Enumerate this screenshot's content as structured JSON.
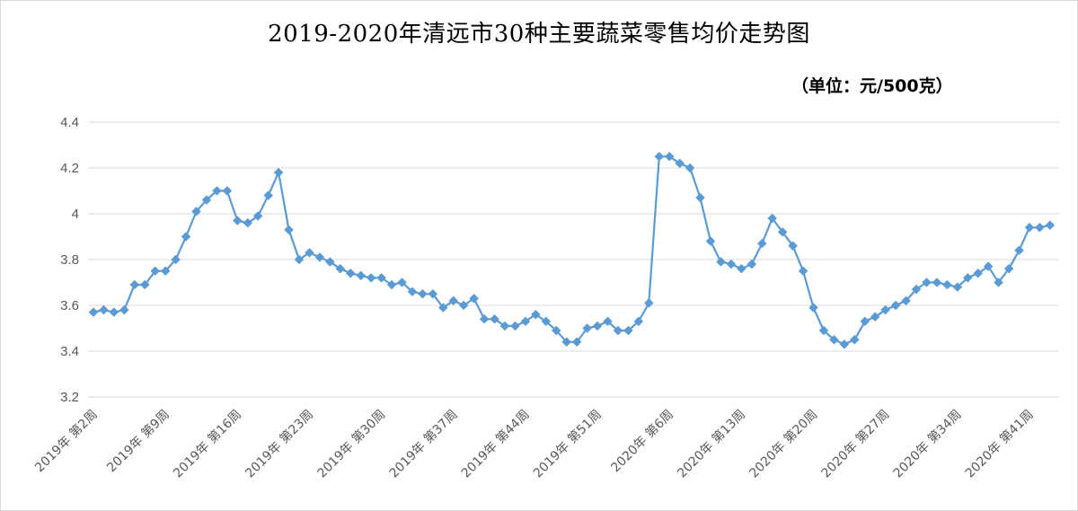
{
  "chart_data": {
    "type": "line",
    "title": "2019-2020年清远市30种主要蔬菜零售均价走势图",
    "unit_note": "（单位：元/500克）",
    "xlabel": "",
    "ylabel": "",
    "ylim": [
      3.2,
      4.4
    ],
    "yticks": [
      3.2,
      3.4,
      3.6,
      3.8,
      4,
      4.2,
      4.4
    ],
    "ytick_labels": [
      "3.2",
      "3.4",
      "3.6",
      "3.8",
      "4",
      "4.2",
      "4.4"
    ],
    "grid": true,
    "legend": "none",
    "x_tick_labels": [
      "2019年 第2周",
      "2019年 第9周",
      "2019年 第16周",
      "2019年 第23周",
      "2019年 第30周",
      "2019年 第37周",
      "2019年 第44周",
      "2019年 第51周",
      "2020年 第6周",
      "2020年 第13周",
      "2020年 第20周",
      "2020年 第27周",
      "2020年 第34周",
      "2020年 第41周"
    ],
    "series": [
      {
        "color": "#5b9bd5",
        "values": [
          3.57,
          3.58,
          3.57,
          3.58,
          3.69,
          3.69,
          3.75,
          3.75,
          3.8,
          3.9,
          4.01,
          4.06,
          4.1,
          4.1,
          3.97,
          3.96,
          3.99,
          4.08,
          4.18,
          3.93,
          3.8,
          3.83,
          3.81,
          3.79,
          3.76,
          3.74,
          3.73,
          3.72,
          3.72,
          3.69,
          3.7,
          3.66,
          3.65,
          3.65,
          3.59,
          3.62,
          3.6,
          3.63,
          3.54,
          3.54,
          3.51,
          3.51,
          3.53,
          3.56,
          3.53,
          3.49,
          3.44,
          3.44,
          3.5,
          3.51,
          3.53,
          3.49,
          3.49,
          3.53,
          3.61,
          4.25,
          4.25,
          4.22,
          4.2,
          4.07,
          3.88,
          3.79,
          3.78,
          3.76,
          3.78,
          3.87,
          3.98,
          3.92,
          3.86,
          3.75,
          3.59,
          3.49,
          3.45,
          3.43,
          3.45,
          3.53,
          3.55,
          3.58,
          3.6,
          3.62,
          3.67,
          3.7,
          3.7,
          3.69,
          3.68,
          3.72,
          3.74,
          3.77,
          3.7,
          3.76,
          3.84,
          3.94,
          3.94,
          3.95
        ]
      }
    ]
  }
}
